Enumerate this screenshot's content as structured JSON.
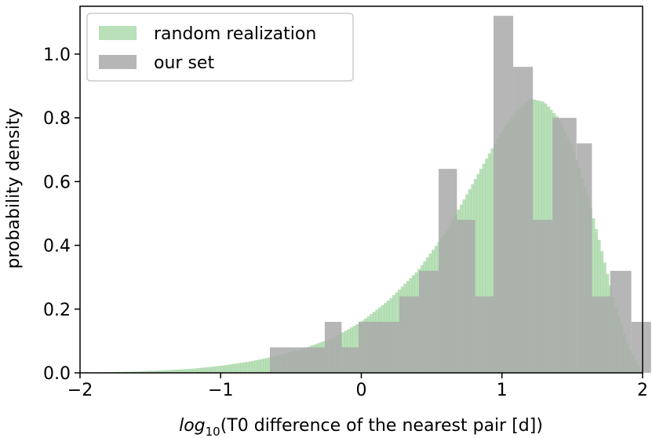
{
  "chart_data": {
    "type": "bar",
    "xlabel_prefix": "log",
    "xlabel_subscript": "10",
    "xlabel_rest": "(T0 difference of the nearest pair [d])",
    "ylabel": "probability density",
    "xlim": [
      -2,
      2
    ],
    "ylim": [
      0,
      1.15
    ],
    "x_ticks": [
      -2,
      -1,
      0,
      1,
      2
    ],
    "x_tick_labels": [
      "−2",
      "−1",
      "0",
      "1",
      "2"
    ],
    "y_ticks": [
      0.0,
      0.2,
      0.4,
      0.6,
      0.8,
      1.0
    ],
    "y_tick_labels": [
      "0.0",
      "0.2",
      "0.4",
      "0.6",
      "0.8",
      "1.0"
    ],
    "legend_position": "top-left",
    "series": [
      {
        "name": "random realization",
        "color": "#7fc77f",
        "opacity": 0.55,
        "bin_width": 0.02,
        "curve_points": [
          [
            -2.0,
            0.0
          ],
          [
            -1.8,
            0.002
          ],
          [
            -1.6,
            0.004
          ],
          [
            -1.4,
            0.008
          ],
          [
            -1.2,
            0.013
          ],
          [
            -1.0,
            0.022
          ],
          [
            -0.8,
            0.035
          ],
          [
            -0.6,
            0.053
          ],
          [
            -0.4,
            0.078
          ],
          [
            -0.2,
            0.11
          ],
          [
            0.0,
            0.16
          ],
          [
            0.2,
            0.23
          ],
          [
            0.4,
            0.32
          ],
          [
            0.6,
            0.44
          ],
          [
            0.8,
            0.6
          ],
          [
            0.9,
            0.68
          ],
          [
            1.0,
            0.76
          ],
          [
            1.1,
            0.82
          ],
          [
            1.2,
            0.86
          ],
          [
            1.3,
            0.85
          ],
          [
            1.4,
            0.8
          ],
          [
            1.5,
            0.71
          ],
          [
            1.6,
            0.57
          ],
          [
            1.7,
            0.4
          ],
          [
            1.8,
            0.22
          ],
          [
            1.9,
            0.08
          ],
          [
            2.0,
            0.0
          ]
        ]
      },
      {
        "name": "our set",
        "color": "#a9a9a9",
        "opacity": 0.85,
        "bin_edges": [
          -0.65,
          -0.41,
          -0.26,
          -0.14,
          -0.02,
          0.12,
          0.27,
          0.41,
          0.55,
          0.68,
          0.81,
          0.94,
          1.08,
          1.22,
          1.36,
          1.53,
          1.64,
          1.77,
          1.92
        ],
        "values": [
          0.08,
          0.08,
          0.16,
          0.08,
          0.16,
          0.16,
          0.24,
          0.32,
          0.64,
          0.48,
          0.24,
          1.12,
          0.96,
          0.48,
          0.8,
          0.72,
          0.24,
          0.32,
          0.16
        ]
      }
    ]
  }
}
